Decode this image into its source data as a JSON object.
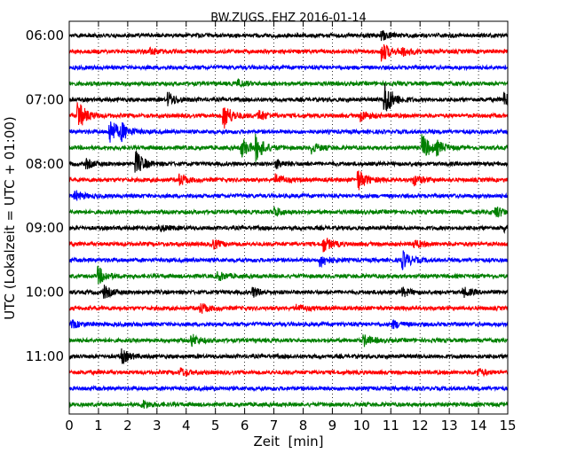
{
  "chart_data": {
    "type": "line",
    "title": "BW.ZUGS..EHZ 2016-01-14",
    "xlabel": "Zeit  [min]",
    "ylabel": "UTC (Lokalzeit = UTC + 01:00)",
    "xlim": [
      0,
      15
    ],
    "x_ticks": [
      "0",
      "1",
      "2",
      "3",
      "4",
      "5",
      "6",
      "7",
      "8",
      "9",
      "10",
      "11",
      "12",
      "13",
      "14",
      "15"
    ],
    "y_ticks": [
      "06:00",
      "07:00",
      "08:00",
      "09:00",
      "10:00",
      "11:00"
    ],
    "grid": "vertical dotted",
    "trace_minutes": 15,
    "colors": [
      "#000000",
      "#ff0000",
      "#0000ff",
      "#008000"
    ],
    "traces": [
      {
        "start": "06:00",
        "color": "#000000",
        "events": [
          [
            10.7,
            0.5
          ]
        ]
      },
      {
        "start": "06:15",
        "color": "#ff0000",
        "events": [
          [
            2.8,
            0.4
          ],
          [
            10.7,
            1.2
          ],
          [
            11.4,
            0.5
          ]
        ]
      },
      {
        "start": "06:30",
        "color": "#0000ff",
        "events": []
      },
      {
        "start": "06:45",
        "color": "#008000",
        "events": [
          [
            5.8,
            0.4
          ]
        ]
      },
      {
        "start": "07:00",
        "color": "#000000",
        "events": [
          [
            3.4,
            0.8
          ],
          [
            10.8,
            2.2
          ],
          [
            14.9,
            0.9
          ]
        ]
      },
      {
        "start": "07:15",
        "color": "#ff0000",
        "events": [
          [
            0.3,
            1.8
          ],
          [
            5.3,
            1.5
          ],
          [
            6.5,
            0.6
          ],
          [
            10.0,
            0.6
          ]
        ]
      },
      {
        "start": "07:30",
        "color": "#0000ff",
        "events": [
          [
            1.4,
            1.6
          ],
          [
            1.8,
            0.8
          ]
        ]
      },
      {
        "start": "07:45",
        "color": "#008000",
        "events": [
          [
            5.9,
            1.2
          ],
          [
            6.4,
            1.4
          ],
          [
            8.3,
            0.6
          ],
          [
            12.1,
            1.5
          ],
          [
            12.6,
            0.6
          ]
        ]
      },
      {
        "start": "08:00",
        "color": "#000000",
        "events": [
          [
            0.6,
            0.5
          ],
          [
            2.3,
            1.4
          ],
          [
            7.1,
            0.5
          ]
        ]
      },
      {
        "start": "08:15",
        "color": "#ff0000",
        "events": [
          [
            3.8,
            0.6
          ],
          [
            7.1,
            0.6
          ],
          [
            9.9,
            1.2
          ],
          [
            11.8,
            0.6
          ]
        ]
      },
      {
        "start": "08:30",
        "color": "#0000ff",
        "events": [
          [
            0.2,
            0.6
          ]
        ]
      },
      {
        "start": "08:45",
        "color": "#008000",
        "events": [
          [
            7.0,
            0.6
          ],
          [
            14.6,
            0.7
          ]
        ]
      },
      {
        "start": "09:00",
        "color": "#000000",
        "events": [
          [
            3.1,
            0.4
          ],
          [
            14.9,
            0.4
          ]
        ]
      },
      {
        "start": "09:15",
        "color": "#ff0000",
        "events": [
          [
            4.9,
            0.6
          ],
          [
            8.7,
            0.9
          ],
          [
            11.8,
            0.5
          ]
        ]
      },
      {
        "start": "09:30",
        "color": "#0000ff",
        "events": [
          [
            8.6,
            0.8
          ],
          [
            11.4,
            1.1
          ]
        ]
      },
      {
        "start": "09:45",
        "color": "#008000",
        "events": [
          [
            1.0,
            1.0
          ],
          [
            5.1,
            0.5
          ]
        ]
      },
      {
        "start": "10:00",
        "color": "#000000",
        "events": [
          [
            1.2,
            0.7
          ],
          [
            6.3,
            0.5
          ],
          [
            11.4,
            0.5
          ],
          [
            13.5,
            0.5
          ]
        ]
      },
      {
        "start": "10:15",
        "color": "#ff0000",
        "events": [
          [
            4.5,
            0.6
          ],
          [
            7.8,
            0.4
          ]
        ]
      },
      {
        "start": "10:30",
        "color": "#0000ff",
        "events": [
          [
            0.1,
            0.4
          ],
          [
            11.1,
            0.4
          ]
        ]
      },
      {
        "start": "10:45",
        "color": "#008000",
        "events": [
          [
            4.2,
            0.7
          ],
          [
            10.1,
            0.6
          ]
        ]
      },
      {
        "start": "11:00",
        "color": "#000000",
        "events": [
          [
            1.8,
            0.8
          ]
        ]
      },
      {
        "start": "11:15",
        "color": "#ff0000",
        "events": [
          [
            3.8,
            0.5
          ],
          [
            14.0,
            0.4
          ]
        ]
      },
      {
        "start": "11:30",
        "color": "#0000ff",
        "events": []
      },
      {
        "start": "11:45",
        "color": "#008000",
        "events": [
          [
            2.5,
            0.5
          ]
        ]
      }
    ]
  }
}
